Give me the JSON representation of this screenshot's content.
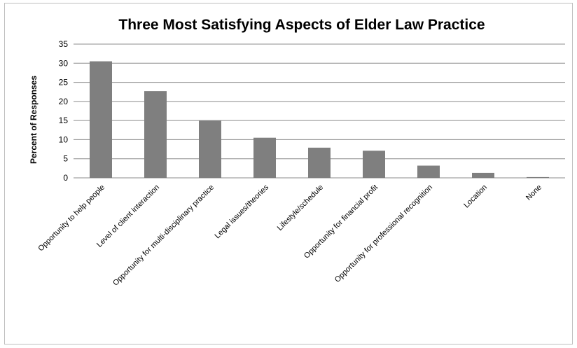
{
  "chart_data": {
    "type": "bar",
    "title": "Three Most Satisfying Aspects of Elder Law Practice",
    "xlabel": "",
    "ylabel": "Percent of Responses",
    "ylim": [
      0,
      35
    ],
    "yticks": [
      0,
      5,
      10,
      15,
      20,
      25,
      30,
      35
    ],
    "grid": true,
    "legend": "none",
    "bar_color": "#7f7f7f",
    "categories": [
      "Opportunity to help people",
      "Level of client interaction",
      "Opportunity for multi-disciplinary practice",
      "Legal issues/theories",
      "Lifestyle/schedule",
      "Opportunity for financial profit",
      "Opportunity for professional recognition",
      "Location",
      "None"
    ],
    "values": [
      30.5,
      22.7,
      15.0,
      10.5,
      7.9,
      7.1,
      3.2,
      1.3,
      0.2
    ]
  }
}
